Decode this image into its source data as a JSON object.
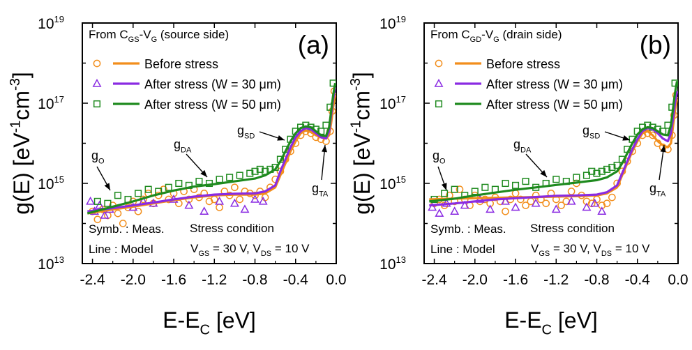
{
  "colors": {
    "before": "#F28E1C",
    "after30": "#8A2BE2",
    "after50": "#1E8A1E",
    "text": "#000000"
  },
  "chart_data": [
    {
      "type": "line",
      "panel_label": "(a)",
      "header": {
        "prefix": "From C",
        "sub1": "GS",
        "mid": "-V",
        "sub2": "G",
        "suffix": " (source side)"
      },
      "xlabel": {
        "main": "E-E",
        "sub": "C",
        "unit": " [eV]"
      },
      "ylabel": {
        "main": "g(E) [eV",
        "sup1": "-1",
        "mid": "cm",
        "sup2": "-3",
        "end": "]"
      },
      "xlim": [
        -2.5,
        0
      ],
      "ylim_log10": [
        13,
        19
      ],
      "log_y": true,
      "xticks": [
        -2.4,
        -2.0,
        -1.6,
        -1.2,
        -0.8,
        -0.4,
        0.0
      ],
      "xtick_labels": [
        "-2.4",
        "-2.0",
        "-1.6",
        "-1.2",
        "-0.8",
        "-0.4",
        "0.0"
      ],
      "yticks": [
        {
          "base": "10",
          "exp": "13"
        },
        {
          "base": "10",
          "exp": "15"
        },
        {
          "base": "10",
          "exp": "17"
        },
        {
          "base": "10",
          "exp": "19"
        }
      ],
      "legend": [
        {
          "label": "Before stress",
          "marker": "circle",
          "color_key": "before"
        },
        {
          "label": "After stress (W = 30 μm)",
          "marker": "triangle",
          "color_key": "after30"
        },
        {
          "label": "After stress (W = 50 μm)",
          "marker": "square",
          "color_key": "after50"
        }
      ],
      "annotations": {
        "gSD": {
          "main": "g",
          "sub": "SD"
        },
        "gDA": {
          "main": "g",
          "sub": "DA"
        },
        "gO": {
          "main": "g",
          "sub": "O"
        },
        "gTA": {
          "main": "g",
          "sub": "TA"
        },
        "symb": "Symb. : Meas.",
        "line": "Line : Model",
        "stress_title": "Stress condition",
        "stress_cond": {
          "v1": "V",
          "s1": "GS",
          "t1": " = 30 V, V",
          "s2": "DS",
          "t2": " = 10 V"
        }
      },
      "series": [
        {
          "key": "before",
          "model_x": [
            -2.45,
            -2.2,
            -2.0,
            -1.8,
            -1.6,
            -1.4,
            -1.2,
            -1.0,
            -0.8,
            -0.7,
            -0.6,
            -0.55,
            -0.5,
            -0.45,
            -0.4,
            -0.35,
            -0.3,
            -0.25,
            -0.2,
            -0.15,
            -0.1,
            -0.07,
            -0.05,
            -0.03,
            -0.01
          ],
          "model_log_y": [
            14.25,
            14.35,
            14.42,
            14.5,
            14.58,
            14.65,
            14.7,
            14.72,
            14.72,
            14.75,
            14.9,
            15.2,
            15.5,
            15.8,
            16.05,
            16.25,
            16.32,
            16.28,
            16.2,
            16.15,
            16.12,
            16.2,
            16.5,
            16.9,
            17.2
          ],
          "meas_x": [
            -2.4,
            -2.35,
            -2.3,
            -2.25,
            -2.2,
            -2.15,
            -2.1,
            -2.05,
            -2.0,
            -1.95,
            -1.9,
            -1.85,
            -1.8,
            -1.75,
            -1.7,
            -1.65,
            -1.6,
            -1.55,
            -1.5,
            -1.45,
            -1.4,
            -1.35,
            -1.3,
            -1.25,
            -1.2,
            -1.15,
            -1.1,
            -1.05,
            -1.0,
            -0.95,
            -0.9,
            -0.85,
            -0.8,
            -0.75,
            -0.7,
            -0.65,
            -0.6,
            -0.55,
            -0.5,
            -0.45,
            -0.4,
            -0.35,
            -0.3,
            -0.25,
            -0.2,
            -0.15,
            -0.1,
            -0.06,
            -0.04,
            -0.02
          ],
          "meas_log_y": [
            14.3,
            14.1,
            14.35,
            14.2,
            14.45,
            14.25,
            14.0,
            14.4,
            14.55,
            14.3,
            14.6,
            14.75,
            14.5,
            14.7,
            14.85,
            14.6,
            14.75,
            14.5,
            14.8,
            14.6,
            14.85,
            14.65,
            14.75,
            14.55,
            14.6,
            14.4,
            14.8,
            14.7,
            14.9,
            14.6,
            14.8,
            14.75,
            14.7,
            14.8,
            14.65,
            14.9,
            15.1,
            15.3,
            15.6,
            15.8,
            16.0,
            16.2,
            16.3,
            16.25,
            16.15,
            16.1,
            16.05,
            16.3,
            16.8,
            17.3
          ]
        },
        {
          "key": "after30",
          "model_x": [
            -2.45,
            -2.2,
            -2.0,
            -1.8,
            -1.6,
            -1.4,
            -1.2,
            -1.0,
            -0.8,
            -0.7,
            -0.6,
            -0.55,
            -0.5,
            -0.45,
            -0.4,
            -0.35,
            -0.3,
            -0.25,
            -0.2,
            -0.15,
            -0.1,
            -0.07,
            -0.05,
            -0.03,
            -0.01
          ],
          "model_log_y": [
            14.3,
            14.38,
            14.45,
            14.52,
            14.6,
            14.67,
            14.72,
            14.74,
            14.75,
            14.8,
            14.95,
            15.3,
            15.6,
            15.9,
            16.15,
            16.3,
            16.38,
            16.35,
            16.25,
            16.15,
            16.12,
            16.3,
            16.7,
            17.1,
            17.4
          ],
          "meas_x": [
            -2.42,
            -2.38,
            -2.33,
            -2.28,
            -2.23,
            -2.0,
            -1.9,
            -1.8,
            -1.6,
            -1.45,
            -1.3,
            -1.15,
            -1.0,
            -0.9,
            -0.8,
            -0.72
          ],
          "meas_log_y": [
            14.55,
            14.3,
            14.45,
            14.2,
            14.35,
            14.4,
            14.55,
            14.5,
            14.6,
            14.45,
            14.3,
            14.55,
            14.5,
            14.35,
            14.6,
            14.55
          ]
        },
        {
          "key": "after50",
          "model_x": [
            -2.45,
            -2.2,
            -2.0,
            -1.8,
            -1.6,
            -1.4,
            -1.2,
            -1.0,
            -0.8,
            -0.7,
            -0.6,
            -0.55,
            -0.5,
            -0.45,
            -0.4,
            -0.35,
            -0.3,
            -0.25,
            -0.2,
            -0.15,
            -0.1,
            -0.07,
            -0.05,
            -0.03,
            -0.01
          ],
          "model_log_y": [
            14.25,
            14.42,
            14.55,
            14.7,
            14.82,
            14.92,
            14.98,
            15.05,
            15.12,
            15.2,
            15.35,
            15.55,
            15.8,
            16.05,
            16.25,
            16.38,
            16.42,
            16.4,
            16.3,
            16.2,
            16.18,
            16.4,
            16.8,
            17.2,
            17.5
          ],
          "meas_x": [
            -2.35,
            -2.25,
            -2.15,
            -2.05,
            -1.95,
            -1.85,
            -1.75,
            -1.65,
            -1.55,
            -1.45,
            -1.35,
            -1.25,
            -1.15,
            -1.05,
            -0.95,
            -0.85,
            -0.8,
            -0.75,
            -0.7,
            -0.65,
            -0.6,
            -0.55,
            -0.5,
            -0.45,
            -0.4,
            -0.35,
            -0.3,
            -0.25,
            -0.2,
            -0.15,
            -0.1,
            -0.06,
            -0.03
          ],
          "meas_log_y": [
            14.55,
            14.5,
            14.7,
            14.6,
            14.75,
            14.85,
            14.8,
            14.9,
            15.0,
            14.95,
            15.05,
            15.0,
            15.1,
            15.15,
            15.2,
            15.25,
            15.3,
            15.35,
            15.3,
            15.35,
            15.4,
            15.6,
            15.85,
            16.1,
            16.3,
            16.4,
            16.45,
            16.4,
            16.35,
            16.3,
            16.45,
            16.9,
            17.5
          ]
        }
      ]
    },
    {
      "type": "line",
      "panel_label": "(b)",
      "header": {
        "prefix": "From C",
        "sub1": "GD",
        "mid": "-V",
        "sub2": "G",
        "suffix": " (drain side)"
      },
      "xlabel": {
        "main": "E-E",
        "sub": "C",
        "unit": " [eV]"
      },
      "ylabel": {
        "main": "g(E) [eV",
        "sup1": "-1",
        "mid": "cm",
        "sup2": "-3",
        "end": "]"
      },
      "xlim": [
        -2.5,
        0
      ],
      "ylim_log10": [
        13,
        19
      ],
      "log_y": true,
      "xticks": [
        -2.4,
        -2.0,
        -1.6,
        -1.2,
        -0.8,
        -0.4,
        0.0
      ],
      "xtick_labels": [
        "-2.4",
        "-2.0",
        "-1.6",
        "-1.2",
        "-0.8",
        "-0.4",
        "0.0"
      ],
      "yticks": [
        {
          "base": "10",
          "exp": "13"
        },
        {
          "base": "10",
          "exp": "15"
        },
        {
          "base": "10",
          "exp": "17"
        },
        {
          "base": "10",
          "exp": "19"
        }
      ],
      "legend": [
        {
          "label": "Before stress",
          "marker": "circle",
          "color_key": "before"
        },
        {
          "label": "After stress (W = 30 μm)",
          "marker": "triangle",
          "color_key": "after30"
        },
        {
          "label": "After stress (W = 50 μm)",
          "marker": "square",
          "color_key": "after50"
        }
      ],
      "annotations": {
        "gSD": {
          "main": "g",
          "sub": "SD"
        },
        "gDA": {
          "main": "g",
          "sub": "DA"
        },
        "gO": {
          "main": "g",
          "sub": "O"
        },
        "gTA": {
          "main": "g",
          "sub": "TA"
        },
        "symb": "Symb. : Meas.",
        "line": "Line : Model",
        "stress_title": "Stress condition",
        "stress_cond": {
          "v1": "V",
          "s1": "GS",
          "t1": " = 30 V, V",
          "s2": "DS",
          "t2": " = 10 V"
        }
      },
      "series": [
        {
          "key": "before",
          "model_x": [
            -2.45,
            -2.2,
            -2.0,
            -1.8,
            -1.6,
            -1.4,
            -1.2,
            -1.0,
            -0.8,
            -0.7,
            -0.6,
            -0.55,
            -0.5,
            -0.45,
            -0.4,
            -0.35,
            -0.3,
            -0.25,
            -0.2,
            -0.15,
            -0.1,
            -0.07,
            -0.05,
            -0.03,
            -0.01
          ],
          "model_log_y": [
            14.6,
            14.62,
            14.63,
            14.64,
            14.65,
            14.66,
            14.67,
            14.68,
            14.7,
            14.75,
            14.9,
            15.2,
            15.5,
            15.8,
            16.05,
            16.25,
            16.3,
            16.2,
            16.05,
            15.95,
            15.9,
            16.0,
            16.4,
            16.8,
            17.1
          ],
          "meas_x": [
            -2.4,
            -2.35,
            -2.3,
            -2.25,
            -2.2,
            -2.15,
            -2.1,
            -2.05,
            -2.0,
            -1.95,
            -1.9,
            -1.85,
            -1.8,
            -1.75,
            -1.7,
            -1.65,
            -1.6,
            -1.55,
            -1.5,
            -1.45,
            -1.4,
            -1.35,
            -1.3,
            -1.25,
            -1.2,
            -1.15,
            -1.1,
            -1.05,
            -1.0,
            -0.95,
            -0.9,
            -0.85,
            -0.8,
            -0.75,
            -0.7,
            -0.65,
            -0.6,
            -0.55,
            -0.5,
            -0.45,
            -0.4,
            -0.35,
            -0.3,
            -0.25,
            -0.2,
            -0.15,
            -0.1,
            -0.06,
            -0.04,
            -0.02
          ],
          "meas_log_y": [
            14.5,
            14.6,
            14.45,
            14.7,
            14.55,
            14.85,
            14.6,
            14.45,
            14.7,
            14.55,
            14.6,
            14.5,
            14.65,
            14.55,
            14.3,
            14.6,
            14.75,
            14.6,
            14.45,
            14.55,
            14.7,
            14.6,
            14.5,
            14.75,
            14.6,
            14.45,
            14.55,
            14.8,
            15.0,
            14.7,
            14.55,
            14.5,
            14.6,
            14.45,
            14.5,
            14.65,
            15.0,
            15.3,
            15.55,
            15.8,
            16.0,
            16.2,
            16.25,
            16.2,
            16.0,
            15.9,
            15.85,
            16.2,
            16.7,
            17.2
          ]
        },
        {
          "key": "after30",
          "model_x": [
            -2.45,
            -2.2,
            -2.0,
            -1.8,
            -1.6,
            -1.4,
            -1.2,
            -1.0,
            -0.8,
            -0.7,
            -0.6,
            -0.55,
            -0.5,
            -0.45,
            -0.4,
            -0.35,
            -0.3,
            -0.25,
            -0.2,
            -0.15,
            -0.1,
            -0.07,
            -0.05,
            -0.03,
            -0.01
          ],
          "model_log_y": [
            14.45,
            14.5,
            14.55,
            14.6,
            14.63,
            14.66,
            14.69,
            14.7,
            14.72,
            14.78,
            14.95,
            15.25,
            15.55,
            15.85,
            16.1,
            16.3,
            16.38,
            16.35,
            16.25,
            16.12,
            16.05,
            16.25,
            16.6,
            17.0,
            17.3
          ],
          "meas_x": [
            -2.42,
            -2.35,
            -2.28,
            -2.2,
            -2.1,
            -1.95,
            -1.85,
            -1.7,
            -1.6,
            -1.4,
            -1.2,
            -1.05,
            -0.9,
            -0.82,
            -0.75
          ],
          "meas_log_y": [
            14.4,
            14.25,
            14.5,
            14.3,
            14.45,
            14.6,
            14.35,
            14.55,
            14.4,
            14.5,
            14.35,
            14.55,
            14.4,
            14.5,
            14.3
          ]
        },
        {
          "key": "after50",
          "model_x": [
            -2.45,
            -2.2,
            -2.0,
            -1.8,
            -1.6,
            -1.4,
            -1.2,
            -1.0,
            -0.8,
            -0.7,
            -0.6,
            -0.55,
            -0.5,
            -0.45,
            -0.4,
            -0.35,
            -0.3,
            -0.25,
            -0.2,
            -0.15,
            -0.1,
            -0.07,
            -0.05,
            -0.03,
            -0.01
          ],
          "model_log_y": [
            14.55,
            14.62,
            14.7,
            14.77,
            14.84,
            14.9,
            14.96,
            15.02,
            15.08,
            15.15,
            15.3,
            15.5,
            15.75,
            16.0,
            16.22,
            16.35,
            16.4,
            16.38,
            16.3,
            16.22,
            16.2,
            16.45,
            16.85,
            17.25,
            17.55
          ],
          "meas_x": [
            -2.4,
            -2.3,
            -2.2,
            -2.1,
            -2.0,
            -1.9,
            -1.8,
            -1.7,
            -1.6,
            -1.5,
            -1.4,
            -1.3,
            -1.2,
            -1.1,
            -1.0,
            -0.9,
            -0.85,
            -0.8,
            -0.75,
            -0.7,
            -0.65,
            -0.6,
            -0.55,
            -0.5,
            -0.45,
            -0.4,
            -0.35,
            -0.3,
            -0.25,
            -0.2,
            -0.15,
            -0.1,
            -0.06,
            -0.03
          ],
          "meas_log_y": [
            14.6,
            14.75,
            14.85,
            14.7,
            14.8,
            14.9,
            14.85,
            15.0,
            14.95,
            15.05,
            14.9,
            15.0,
            15.1,
            15.05,
            15.15,
            15.2,
            15.3,
            15.25,
            15.3,
            15.35,
            15.4,
            15.45,
            15.6,
            15.85,
            16.1,
            16.3,
            16.4,
            16.45,
            16.4,
            16.35,
            16.3,
            16.45,
            16.9,
            17.5
          ]
        }
      ]
    }
  ]
}
